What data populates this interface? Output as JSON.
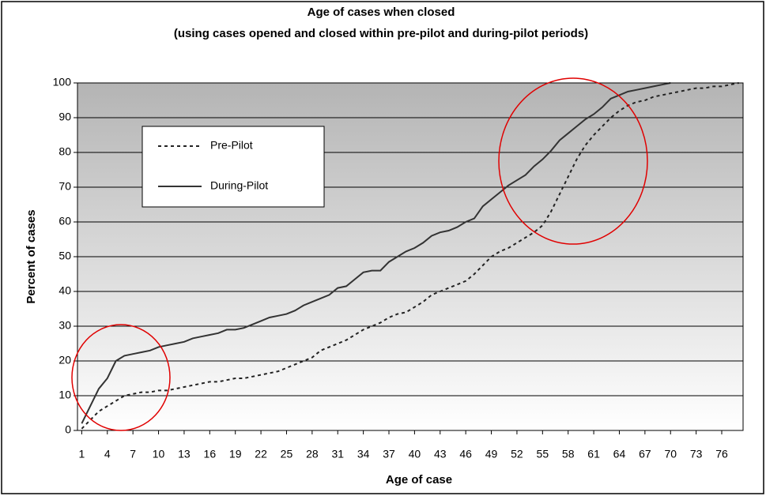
{
  "chart_data": {
    "type": "line",
    "title": "Age of cases when closed",
    "subtitle": "(using cases opened and closed within pre-pilot and during-pilot periods)",
    "x_label": "Age of case",
    "y_label": "Percent of cases",
    "x": [
      1,
      2,
      3,
      4,
      5,
      6,
      7,
      8,
      9,
      10,
      11,
      12,
      13,
      14,
      15,
      16,
      17,
      18,
      19,
      20,
      21,
      22,
      23,
      24,
      25,
      26,
      27,
      28,
      29,
      30,
      31,
      32,
      33,
      34,
      35,
      36,
      37,
      38,
      39,
      40,
      41,
      42,
      43,
      44,
      45,
      46,
      47,
      48,
      49,
      50,
      51,
      52,
      53,
      54,
      55,
      56,
      57,
      58,
      59,
      60,
      61,
      62,
      63,
      64,
      65,
      66,
      67,
      68,
      69,
      70,
      71,
      72,
      73,
      74,
      75,
      76,
      77,
      78
    ],
    "series": [
      {
        "name": "Pre-Pilot",
        "color": "#222222",
        "dash": "dotted",
        "values": [
          0.5,
          3,
          5.5,
          7,
          8.5,
          10,
          10.5,
          11,
          11,
          11.5,
          11.5,
          12,
          12.5,
          13,
          13.5,
          14,
          14,
          14.5,
          15,
          15,
          15.5,
          16,
          16.5,
          17,
          18,
          19,
          20,
          21,
          23,
          24,
          25,
          26,
          27.5,
          29,
          30,
          31,
          32.5,
          33.5,
          34,
          35.5,
          37,
          39,
          40,
          41,
          42,
          43,
          45,
          47.5,
          50,
          51.5,
          52.5,
          54,
          55.5,
          57,
          59,
          63,
          68,
          73,
          78,
          82,
          85,
          87.5,
          90,
          92,
          93.5,
          94.5,
          95,
          96,
          96.5,
          97,
          97.5,
          98,
          98.5,
          98.5,
          99,
          99,
          99.5,
          100
        ]
      },
      {
        "name": "During-Pilot",
        "color": "#333333",
        "dash": "solid",
        "values": [
          2,
          7,
          12,
          15,
          20,
          21.5,
          22,
          22.5,
          23,
          24,
          24.5,
          25,
          25.5,
          26.5,
          27,
          27.5,
          28,
          29,
          29,
          29.5,
          30.5,
          31.5,
          32.5,
          33,
          33.5,
          34.5,
          36,
          37,
          38,
          39,
          41,
          41.5,
          43.5,
          45.5,
          46,
          46,
          48.5,
          50,
          51.5,
          52.5,
          54,
          56,
          57,
          57.5,
          58.5,
          60,
          61,
          64.5,
          66.5,
          68.5,
          70.5,
          72,
          73.5,
          76,
          78,
          80.5,
          83.5,
          85.5,
          87.5,
          89.5,
          91,
          93,
          95.5,
          96.5,
          97.5,
          98,
          98.5,
          99,
          99.5,
          100,
          null,
          null,
          null,
          null,
          null,
          null,
          null,
          null
        ]
      }
    ],
    "xlim": [
      0.5,
      78.5
    ],
    "xticks": [
      1,
      4,
      7,
      10,
      13,
      16,
      19,
      22,
      25,
      28,
      31,
      34,
      37,
      40,
      43,
      46,
      49,
      52,
      55,
      58,
      61,
      64,
      67,
      70,
      73,
      76
    ],
    "ylim": [
      0,
      100
    ],
    "yticks": [
      0,
      10,
      20,
      30,
      40,
      50,
      60,
      70,
      80,
      90,
      100
    ],
    "grid": true
  }
}
